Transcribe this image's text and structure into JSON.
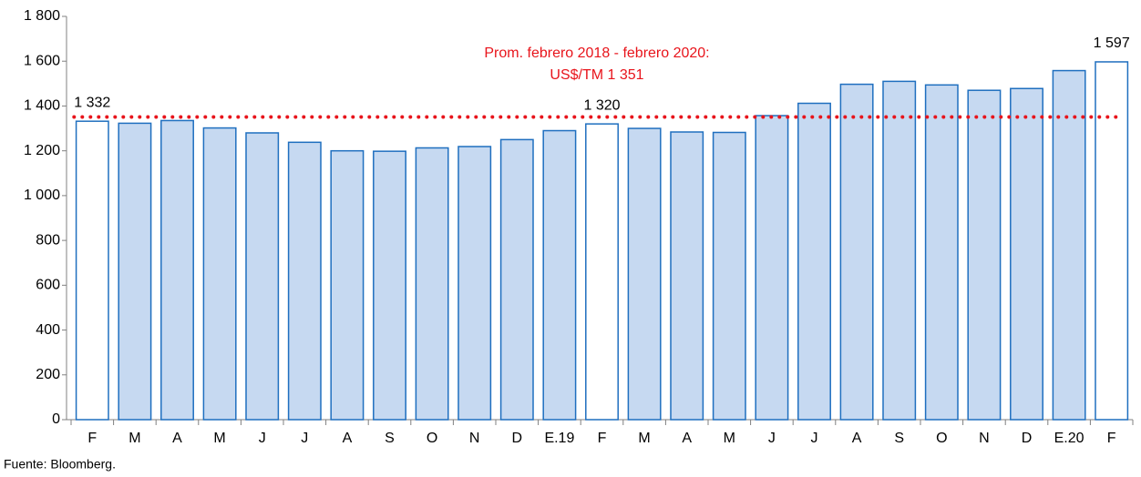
{
  "chart_data": {
    "type": "bar",
    "categories": [
      "F",
      "M",
      "A",
      "M",
      "J",
      "J",
      "A",
      "S",
      "O",
      "N",
      "D",
      "E.19",
      "F",
      "M",
      "A",
      "M",
      "J",
      "J",
      "A",
      "S",
      "O",
      "N",
      "D",
      "E.20",
      "F"
    ],
    "values": [
      1332,
      1323,
      1335,
      1302,
      1280,
      1238,
      1200,
      1198,
      1213,
      1219,
      1250,
      1290,
      1320,
      1300,
      1284,
      1282,
      1357,
      1412,
      1497,
      1510,
      1494,
      1470,
      1478,
      1558,
      1597
    ],
    "value_labels": [
      "1 332",
      null,
      null,
      null,
      null,
      null,
      null,
      null,
      null,
      null,
      null,
      null,
      "1 320",
      null,
      null,
      null,
      null,
      null,
      null,
      null,
      null,
      null,
      null,
      null,
      "1 597"
    ],
    "colors": [
      "#ffffff",
      "#c6d9f1",
      "#c6d9f1",
      "#c6d9f1",
      "#c6d9f1",
      "#c6d9f1",
      "#c6d9f1",
      "#c6d9f1",
      "#c6d9f1",
      "#c6d9f1",
      "#c6d9f1",
      "#c6d9f1",
      "#ffffff",
      "#c6d9f1",
      "#c6d9f1",
      "#c6d9f1",
      "#c6d9f1",
      "#c6d9f1",
      "#c6d9f1",
      "#c6d9f1",
      "#c6d9f1",
      "#c6d9f1",
      "#c6d9f1",
      "#c6d9f1",
      "#ffffff"
    ],
    "edge_color": "#1f6fbf",
    "ylim": [
      0,
      1800
    ],
    "yticks": [
      0,
      200,
      400,
      600,
      800,
      {
        "value": 1000,
        "label": "1 000"
      },
      {
        "value": 1200,
        "label": "1 200"
      },
      {
        "value": 1400,
        "label": "1 400"
      },
      {
        "value": 1600,
        "label": "1 600"
      },
      {
        "value": 1800,
        "label": "1 800"
      }
    ],
    "reference_line": {
      "value": 1351,
      "color": "#e8141b",
      "label": [
        "Prom. febrero 2018 - febrero 2020:",
        "US$/TM 1 351"
      ]
    },
    "source": "Fuente: Bloomberg."
  }
}
